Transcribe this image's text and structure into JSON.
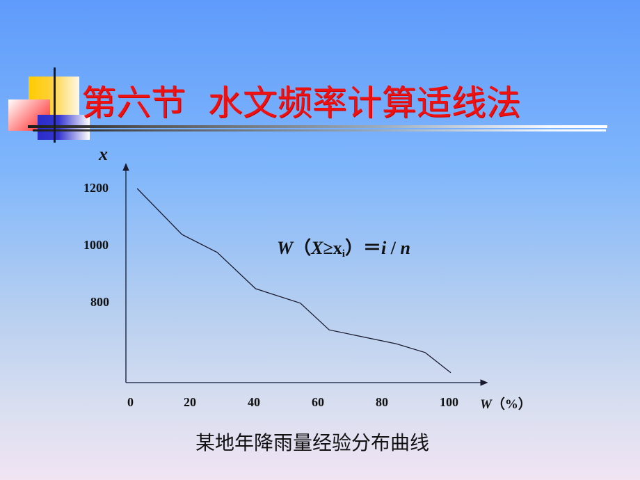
{
  "slide": {
    "title": "第六节  水文频率计算适线法",
    "formula": {
      "w": "W",
      "open": "（",
      "X": "X",
      "ge": "≥",
      "xi": "x",
      "sub": "i",
      "close": "）",
      "eq": "＝",
      "i": "i",
      "slash": " / ",
      "n": "n"
    },
    "caption": "某地年降雨量经验分布曲线",
    "colors": {
      "title": "#ee1111",
      "line": "#1a1a2e",
      "axis": "#2a3a55"
    }
  },
  "chart_data": {
    "type": "line",
    "title": "某地年降雨量经验分布曲线",
    "xlabel": "W（%）",
    "ylabel": "x",
    "x_ticks": [
      "0",
      "20",
      "40",
      "60",
      "80",
      "100"
    ],
    "y_ticks": [
      "800",
      "1000",
      "1200"
    ],
    "xlim": [
      0,
      110
    ],
    "ylim": [
      520,
      1260
    ],
    "grid": false,
    "annotation": "W（X≥xi）＝i / n",
    "series": [
      {
        "name": "经验分布曲线",
        "x": [
          2,
          16,
          27,
          39,
          53,
          62,
          83,
          92,
          100
        ],
        "y": [
          1200,
          1038,
          975,
          847,
          796,
          702,
          653,
          622,
          551
        ]
      }
    ]
  }
}
